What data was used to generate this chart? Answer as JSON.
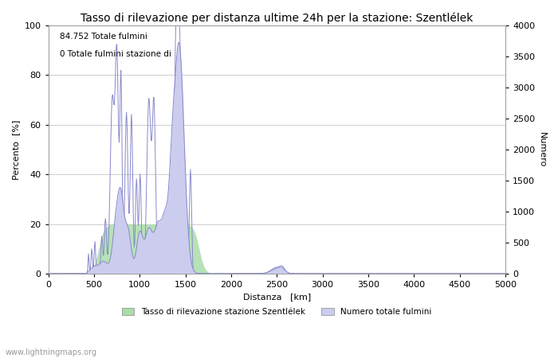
{
  "title": "Tasso di rilevazione per distanza ultime 24h per la stazione: Szentlélek",
  "xlabel": "Distanza   [km]",
  "ylabel_left": "Percento  [%]",
  "ylabel_right": "Numero",
  "annotation_line1": "84.752 Totale fulmini",
  "annotation_line2": "0 Totale fulmini stazione di",
  "legend_green": "Tasso di rilevazione stazione Szentlélek",
  "legend_blue": "Numero totale fulmini",
  "watermark": "www.lightningmaps.org",
  "xlim": [
    0,
    5000
  ],
  "ylim_left": [
    0,
    100
  ],
  "ylim_right": [
    0,
    4000
  ],
  "yticks_left": [
    0,
    20,
    40,
    60,
    80,
    100
  ],
  "yticks_right": [
    0,
    500,
    1000,
    1500,
    2000,
    2500,
    3000,
    3500,
    4000
  ],
  "xticks": [
    0,
    500,
    1000,
    1500,
    2000,
    2500,
    3000,
    3500,
    4000,
    4500,
    5000
  ],
  "line_color": "#8888cc",
  "fill_blue_color": "#ccccee",
  "fill_green_color": "#aaddaa",
  "bg_color": "#ffffff",
  "grid_color": "#bbbbbb",
  "title_fontsize": 10,
  "label_fontsize": 8,
  "tick_fontsize": 8
}
